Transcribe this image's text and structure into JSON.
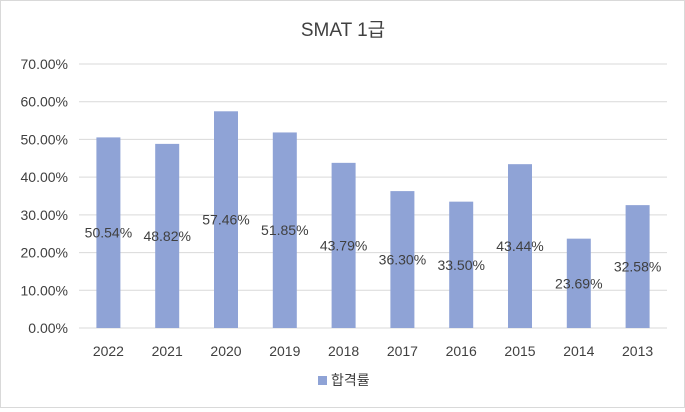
{
  "chart_data": {
    "type": "bar",
    "title": "SMAT 1급",
    "categories": [
      "2022",
      "2021",
      "2020",
      "2019",
      "2018",
      "2017",
      "2016",
      "2015",
      "2014",
      "2013"
    ],
    "series": [
      {
        "name": "합격률",
        "values": [
          50.54,
          48.82,
          57.46,
          51.85,
          43.79,
          36.3,
          33.5,
          43.44,
          23.69,
          32.58
        ],
        "labels": [
          "50.54%",
          "48.82%",
          "57.46%",
          "51.85%",
          "43.79%",
          "36.30%",
          "33.50%",
          "43.44%",
          "23.69%",
          "32.58%"
        ],
        "color": "#8fa3d6"
      }
    ],
    "ylim": [
      0,
      70
    ],
    "yticks": [
      0,
      10,
      20,
      30,
      40,
      50,
      60,
      70
    ],
    "ytick_labels": [
      "0.00%",
      "10.00%",
      "20.00%",
      "30.00%",
      "40.00%",
      "50.00%",
      "60.00%",
      "70.00%"
    ],
    "xlabel": "",
    "ylabel": "",
    "grid": true,
    "legend_position": "bottom",
    "gridline_color": "#d9d9d9",
    "text_color": "#404040"
  }
}
